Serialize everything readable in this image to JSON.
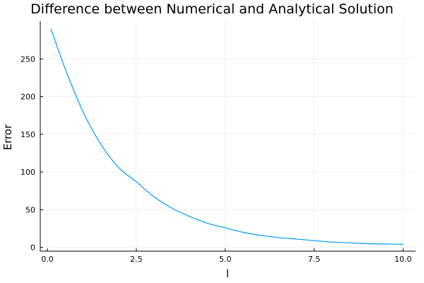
{
  "chart_data": {
    "type": "line",
    "title": "Difference between Numerical and Analytical Solution",
    "xlabel": "l",
    "ylabel": "Error",
    "xlim": [
      -0.2,
      10.35
    ],
    "ylim": [
      -5,
      300
    ],
    "xticks": [
      0.0,
      2.5,
      5.0,
      7.5,
      10.0
    ],
    "xtick_labels": [
      "0.0",
      "2.5",
      "5.0",
      "7.5",
      "10.0"
    ],
    "yticks": [
      0,
      50,
      100,
      150,
      200,
      250
    ],
    "ytick_labels": [
      "0",
      "50",
      "100",
      "150",
      "200",
      "250"
    ],
    "grid": true,
    "legend": "none",
    "line_color": "#009af9",
    "series": [
      {
        "x": [
          0.1,
          0.5,
          1.0,
          1.5,
          2.0,
          2.5,
          3.0,
          3.5,
          4.0,
          4.5,
          5.0,
          5.5,
          6.0,
          6.5,
          7.0,
          7.5,
          8.0,
          8.5,
          9.0,
          9.5,
          10.0
        ],
        "values": [
          290,
          237,
          180,
          137,
          106,
          87,
          67,
          52,
          41,
          32,
          26,
          20,
          16,
          13,
          11,
          9,
          7,
          6,
          5,
          4.5,
          4
        ]
      }
    ]
  }
}
